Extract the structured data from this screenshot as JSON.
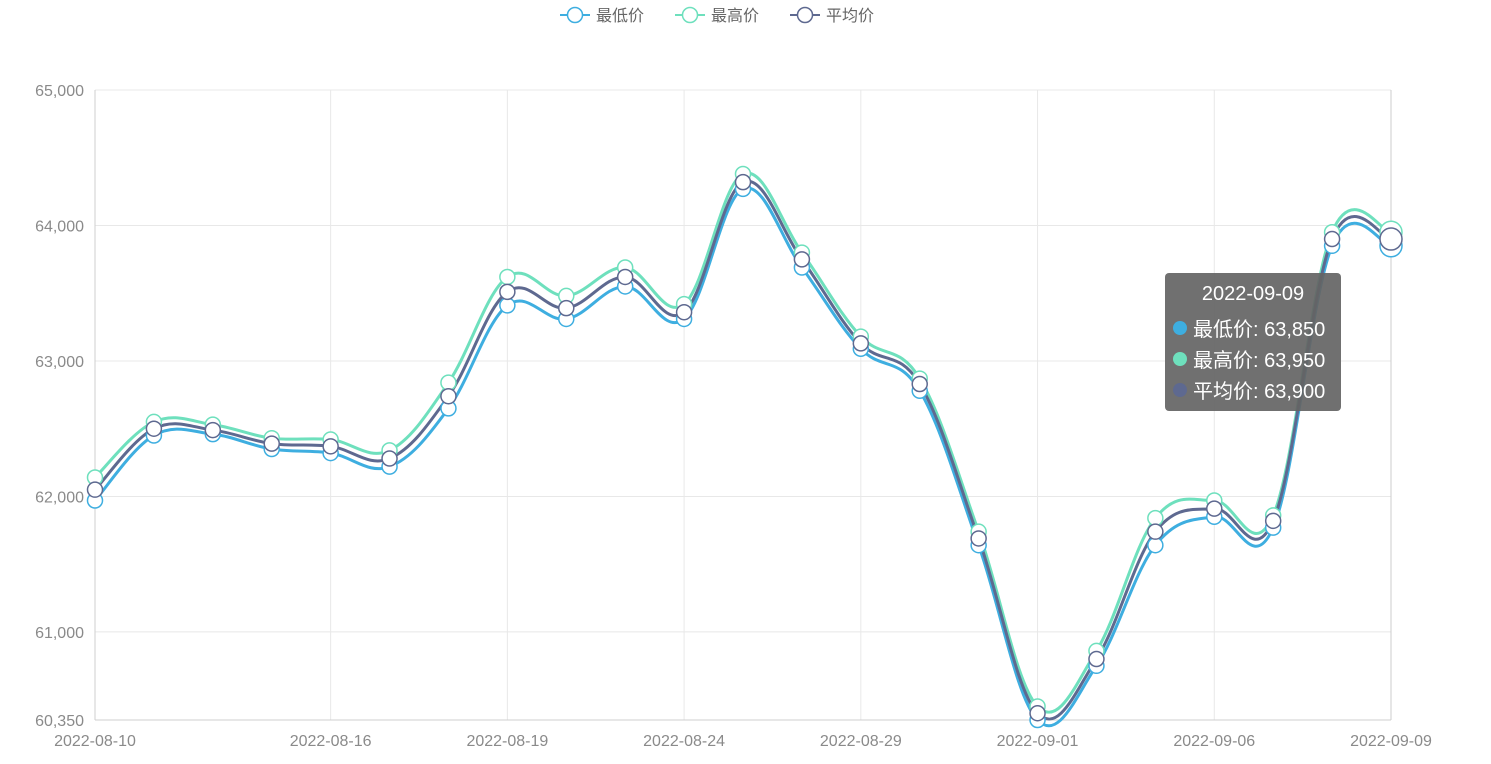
{
  "chart_data": {
    "type": "line",
    "x": [
      "2022-08-10",
      "2022-08-11",
      "2022-08-12",
      "2022-08-15",
      "2022-08-16",
      "2022-08-17",
      "2022-08-18",
      "2022-08-19",
      "2022-08-22",
      "2022-08-23",
      "2022-08-24",
      "2022-08-25",
      "2022-08-26",
      "2022-08-29",
      "2022-08-30",
      "2022-08-31",
      "2022-09-01",
      "2022-09-02",
      "2022-09-05",
      "2022-09-06",
      "2022-09-07",
      "2022-09-08",
      "2022-09-09"
    ],
    "x_ticks": [
      "2022-08-10",
      "2022-08-16",
      "2022-08-19",
      "2022-08-24",
      "2022-08-29",
      "2022-09-01",
      "2022-09-06",
      "2022-09-09"
    ],
    "series": [
      {
        "name": "最低价",
        "color": "#3eaee0",
        "values": [
          61970,
          62450,
          62460,
          62350,
          62320,
          62220,
          62650,
          63410,
          63310,
          63550,
          63310,
          64270,
          63690,
          63090,
          62780,
          61640,
          60350,
          60750,
          61640,
          61850,
          61770,
          63850,
          63850
        ]
      },
      {
        "name": "最高价",
        "color": "#6ee0bd",
        "values": [
          62140,
          62550,
          62530,
          62430,
          62420,
          62340,
          62840,
          63620,
          63480,
          63690,
          63420,
          64380,
          63800,
          63180,
          62870,
          61740,
          60450,
          60860,
          61840,
          61970,
          61860,
          63950,
          63950
        ]
      },
      {
        "name": "平均价",
        "color": "#5e6990",
        "values": [
          62050,
          62500,
          62490,
          62390,
          62370,
          62280,
          62740,
          63510,
          63390,
          63620,
          63360,
          64320,
          63750,
          63130,
          62830,
          61690,
          60400,
          60800,
          61740,
          61910,
          61820,
          63900,
          63900
        ]
      }
    ],
    "ylim": [
      60350,
      65000
    ],
    "y_ticks": [
      "60,350",
      "61,000",
      "62,000",
      "63,000",
      "64,000",
      "65,000"
    ],
    "grid": true,
    "legend_placement": "top-center"
  },
  "tooltip": {
    "title": "2022-09-09",
    "rows": [
      "最低价: 63,850",
      "最高价: 63,950",
      "平均价: 63,900"
    ]
  }
}
